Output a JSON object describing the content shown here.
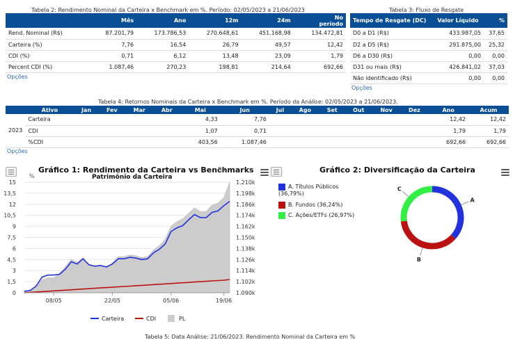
{
  "table2": {
    "caption": "Tabela 2: Rendimento Nominal da Carteira x Benchmark em %. Período: 02/05/2023 a 21/06/2023",
    "headers": [
      "",
      "Mês",
      "Ano",
      "12m",
      "24m",
      "No\nperíodo"
    ],
    "rows": [
      [
        "Rend. Nominal (R$)",
        "87.201,79",
        "173.786,53",
        "270.648,61",
        "451.168,98",
        "134.472,81"
      ],
      [
        "Carteira (%)",
        "7,76",
        "16,54",
        "26,79",
        "49,57",
        "12,42"
      ],
      [
        "CDI (%)",
        "0,71",
        "6,12",
        "13,48",
        "23,09",
        "1,79"
      ],
      [
        "Percent CDI (%)",
        "1.087,46",
        "270,23",
        "198,81",
        "214,64",
        "692,66"
      ]
    ],
    "options": "Opções"
  },
  "table3": {
    "caption": "Tabela 3: Fluxo de Resgate",
    "headers": [
      "Tempo de Resgate (DC)",
      "Valor Líquido",
      "%"
    ],
    "rows": [
      [
        "D0 a D1 (R$)",
        "433.987,05",
        "37,65"
      ],
      [
        "D2 a D5 (R$)",
        "291.875,00",
        "25,32"
      ],
      [
        "D6 a D30 (R$)",
        "0,00",
        "0,00"
      ],
      [
        "D31 ou mais (R$)",
        "426.841,02",
        "37,03"
      ],
      [
        "Não identificado (R$)",
        "0,00",
        "0,00"
      ]
    ],
    "options": "Opções"
  },
  "table4": {
    "caption": "Tabela 4: Retornos Nominais da Carteira x Benchmark em %. Período da Análise: 02/05/2023 a 21/06/2023.",
    "headers": [
      "",
      "Ativo",
      "Jan",
      "Fev",
      "Mar",
      "Abr",
      "Mai",
      "Jun",
      "Jul",
      "Ago",
      "Set",
      "Out",
      "Nov",
      "Dez",
      "Ano",
      "Acum"
    ],
    "year": "2023",
    "rows": [
      [
        "Carteira",
        "",
        "",
        "",
        "",
        "4,33",
        "7,76",
        "",
        "",
        "",
        "",
        "",
        "",
        "12,42",
        "12,42"
      ],
      [
        "CDI",
        "",
        "",
        "",
        "",
        "1,07",
        "0,71",
        "",
        "",
        "",
        "",
        "",
        "",
        "1,79",
        "1,79"
      ],
      [
        "%CDI",
        "",
        "",
        "",
        "",
        "403,56",
        "1.087,46",
        "",
        "",
        "",
        "",
        "",
        "",
        "692,66",
        "692,66"
      ]
    ],
    "options": "Opções"
  },
  "chart1": {
    "title": "Gráfico 1: Rendimento da Carteira vs Benchmarks",
    "subtitle": "Patrimônio da Carteira",
    "left_unit": "%",
    "right_unit": "R$",
    "legend": [
      "Carteira",
      "CDI",
      "PL"
    ]
  },
  "chart2": {
    "title": "Gráfico 2: Diversificação da Carteira",
    "legend": [
      "A. Títulos Públicos (36,79%)",
      "B. Fundos (36,24%)",
      "C. Ações/ETFs (26,97%)"
    ],
    "labels": [
      "A",
      "B",
      "C"
    ]
  },
  "footer_caption": "Tabela 5: Data Análise: 21/06/2023. Rendimento Nominal da Carteira em %",
  "colors": {
    "header": "#0a4f96",
    "carteira": "#2233dd",
    "cdi": "#bb1111",
    "pl": "#cccccc",
    "acoes": "#33ee44",
    "options": "#2a6ab4"
  },
  "icons": [
    "menu-icon",
    "table-icon"
  ],
  "chart_data": [
    {
      "type": "line",
      "title": "Gráfico 1: Rendimento da Carteira vs Benchmarks",
      "subtitle": "Patrimônio da Carteira",
      "x_ticks": [
        "08/05",
        "22/05",
        "05/06",
        "19/06"
      ],
      "y_left_ticks": [
        "0",
        "1,5",
        "3",
        "4,5",
        "6",
        "7,5",
        "9",
        "10,5",
        "12",
        "13,5",
        "15"
      ],
      "y_right_ticks": [
        "1.090k",
        "1.102k",
        "1.114k",
        "1.126k",
        "1.138k",
        "1.150k",
        "1.162k",
        "1.174k",
        "1.186k",
        "1.198k",
        "1.210k"
      ],
      "ylim_left": [
        0,
        15
      ],
      "ylim_right": [
        1090,
        1210
      ],
      "n_points": 36,
      "series": [
        {
          "name": "Carteira",
          "axis": "left",
          "values": [
            0.2,
            0.3,
            0.9,
            2.1,
            2.4,
            2.4,
            2.5,
            3.2,
            4.2,
            3.9,
            4.6,
            3.8,
            3.6,
            3.7,
            3.5,
            3.9,
            4.6,
            4.6,
            4.8,
            4.7,
            4.5,
            4.6,
            5.4,
            5.9,
            6.6,
            8.3,
            8.8,
            9.1,
            9.9,
            10.6,
            10.2,
            10.2,
            10.9,
            11.1,
            11.8,
            12.4
          ]
        },
        {
          "name": "CDI",
          "axis": "left",
          "values": [
            0,
            0.05,
            0.1,
            0.15,
            0.2,
            0.25,
            0.3,
            0.35,
            0.4,
            0.45,
            0.5,
            0.55,
            0.6,
            0.65,
            0.7,
            0.75,
            0.8,
            0.85,
            0.9,
            0.95,
            1.0,
            1.05,
            1.1,
            1.15,
            1.2,
            1.25,
            1.3,
            1.35,
            1.4,
            1.45,
            1.5,
            1.55,
            1.6,
            1.65,
            1.7,
            1.79
          ]
        },
        {
          "name": "PL",
          "axis": "right",
          "values": [
            1091,
            1091,
            1096,
            1104,
            1106,
            1106,
            1111,
            1118,
            1126,
            1123,
            1128,
            1120,
            1118,
            1119,
            1117,
            1122,
            1129,
            1129,
            1131,
            1130,
            1128,
            1129,
            1136,
            1141,
            1148,
            1162,
            1167,
            1170,
            1176,
            1182,
            1178,
            1178,
            1185,
            1187,
            1193,
            1210
          ]
        }
      ]
    },
    {
      "type": "pie",
      "title": "Gráfico 2: Diversificação da Carteira",
      "labels": [
        "A. Títulos Públicos",
        "B. Fundos",
        "C. Ações/ETFs"
      ],
      "values": [
        36.79,
        36.24,
        26.97
      ]
    }
  ]
}
